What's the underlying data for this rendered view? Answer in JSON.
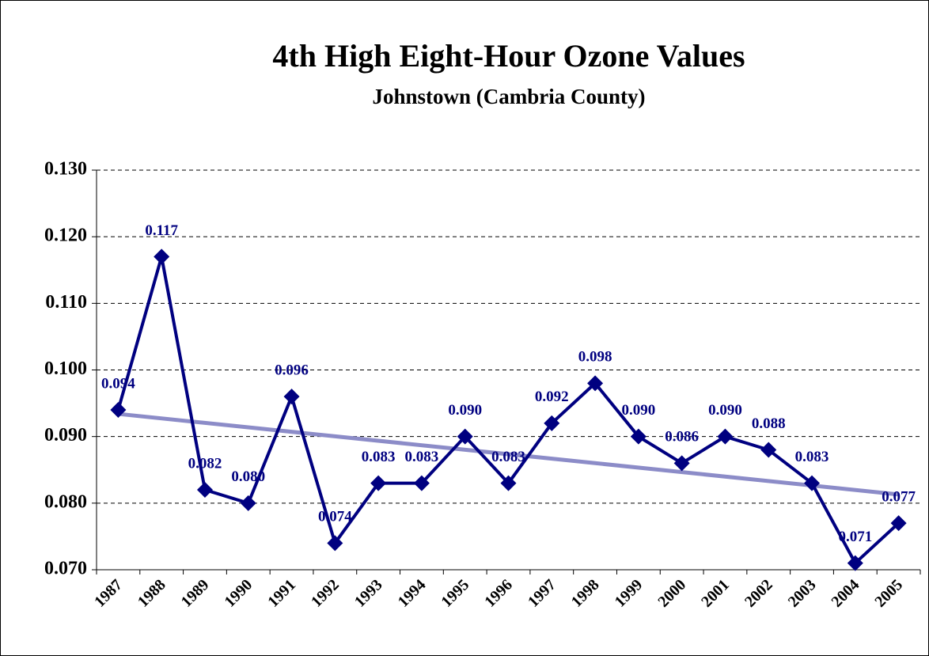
{
  "chart_data": {
    "type": "line",
    "title": "4th High Eight-Hour Ozone Values",
    "subtitle": "Johnstown (Cambria County)",
    "categories": [
      "1987",
      "1988",
      "1989",
      "1990",
      "1991",
      "1992",
      "1993",
      "1994",
      "1995",
      "1996",
      "1997",
      "1998",
      "1999",
      "2000",
      "2001",
      "2002",
      "2003",
      "2004",
      "2005"
    ],
    "series": [
      {
        "color": "#000080",
        "values": [
          0.094,
          0.117,
          0.082,
          0.08,
          0.096,
          0.074,
          0.083,
          0.083,
          0.09,
          0.083,
          0.092,
          0.098,
          0.09,
          0.086,
          0.09,
          0.088,
          0.083,
          0.071,
          0.077
        ],
        "value_labels": [
          "0.094",
          "0.117",
          "0.082",
          "0.080",
          "0.096",
          "0.074",
          "0.083",
          "0.083",
          "0.090",
          "0.083",
          "0.092",
          "0.098",
          "0.090",
          "0.086",
          "0.090",
          "0.088",
          "0.083",
          "0.071",
          "0.077"
        ]
      }
    ],
    "trendline": {
      "color": "#8c8cc8",
      "values": [
        0.0934,
        0.0813
      ]
    },
    "ylim": [
      0.07,
      0.13
    ],
    "yticks": [
      {
        "value": 0.07,
        "label": "0.070"
      },
      {
        "value": 0.08,
        "label": "0.080"
      },
      {
        "value": 0.09,
        "label": "0.090"
      },
      {
        "value": 0.1,
        "label": "0.100"
      },
      {
        "value": 0.11,
        "label": "0.110"
      },
      {
        "value": 0.12,
        "label": "0.120"
      },
      {
        "value": 0.13,
        "label": "0.130"
      }
    ],
    "grid": true
  }
}
